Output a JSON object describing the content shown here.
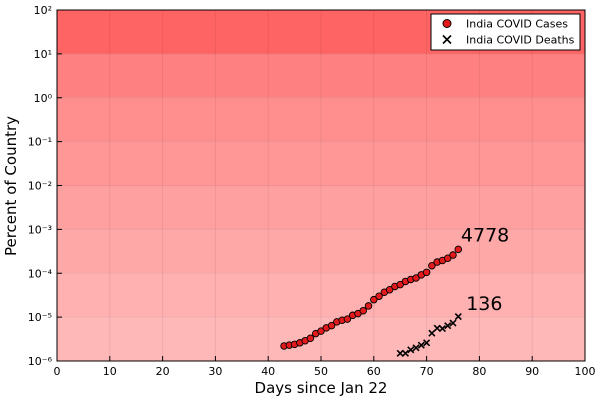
{
  "chart_data": {
    "type": "scatter",
    "xlabel": "Days since Jan 22",
    "ylabel": "Percent of Country",
    "xlim": [
      0,
      100
    ],
    "ylim": [
      1e-06,
      100
    ],
    "y_scale": "log",
    "x_ticks": [
      0,
      10,
      20,
      30,
      40,
      50,
      60,
      70,
      80,
      90,
      100
    ],
    "y_ticks": [
      {
        "value": 1e-06,
        "label": "10⁻⁶"
      },
      {
        "value": 1e-05,
        "label": "10⁻⁵"
      },
      {
        "value": 0.0001,
        "label": "10⁻⁴"
      },
      {
        "value": 0.001,
        "label": "10⁻³"
      },
      {
        "value": 0.01,
        "label": "10⁻²"
      },
      {
        "value": 0.1,
        "label": "10⁻¹"
      },
      {
        "value": 1,
        "label": "10⁰"
      },
      {
        "value": 10,
        "label": "10¹"
      },
      {
        "value": 100,
        "label": "10²"
      }
    ],
    "grid": true,
    "legend_position": "top-right",
    "background_bands": [
      {
        "from": 1e-06,
        "to": 1e-05,
        "color": "#ffb8b8"
      },
      {
        "from": 1e-05,
        "to": 0.0001,
        "color": "#ffb0b0"
      },
      {
        "from": 0.0001,
        "to": 0.001,
        "color": "#ffa8a8"
      },
      {
        "from": 0.001,
        "to": 0.01,
        "color": "#ffa0a0"
      },
      {
        "from": 0.01,
        "to": 0.1,
        "color": "#ff9797"
      },
      {
        "from": 0.1,
        "to": 1,
        "color": "#ff8e8e"
      },
      {
        "from": 1,
        "to": 10,
        "color": "#ff8080"
      },
      {
        "from": 10,
        "to": 100,
        "color": "#ff6464"
      }
    ],
    "series": [
      {
        "name": "India COVID Cases",
        "marker": "circle",
        "color": "#e31a1c",
        "x": [
          43,
          44,
          45,
          46,
          47,
          48,
          49,
          50,
          51,
          52,
          53,
          54,
          55,
          56,
          57,
          58,
          59,
          60,
          61,
          62,
          63,
          64,
          65,
          66,
          67,
          68,
          69,
          70,
          71,
          72,
          73,
          74,
          75,
          76
        ],
        "y": [
          2.2e-06,
          2.3e-06,
          2.4e-06,
          2.6e-06,
          2.9e-06,
          3.3e-06,
          4.2e-06,
          4.8e-06,
          5.7e-06,
          6.4e-06,
          7.8e-06,
          8.5e-06,
          9e-06,
          1.1e-05,
          1.2e-05,
          1.4e-05,
          1.8e-05,
          2.5e-05,
          3e-05,
          3.7e-05,
          4.2e-05,
          5e-05,
          5.5e-05,
          6.5e-05,
          7.2e-05,
          7.8e-05,
          9.2e-05,
          0.000105,
          0.000148,
          0.00018,
          0.000195,
          0.00022,
          0.00026,
          0.00035
        ]
      },
      {
        "name": "India COVID Deaths",
        "marker": "x",
        "color": "#000000",
        "x": [
          65,
          66,
          67,
          68,
          69,
          70,
          71,
          72,
          73,
          74,
          75,
          76
        ],
        "y": [
          1.5e-06,
          1.5e-06,
          1.8e-06,
          2e-06,
          2.3e-06,
          2.6e-06,
          4.3e-06,
          5.6e-06,
          5.5e-06,
          6.4e-06,
          7.3e-06,
          1.03e-05
        ]
      }
    ],
    "annotations": [
      {
        "text": "4778",
        "x": 76.5,
        "y": 0.00053
      },
      {
        "text": "136",
        "x": 77.5,
        "y": 1.45e-05
      }
    ]
  }
}
